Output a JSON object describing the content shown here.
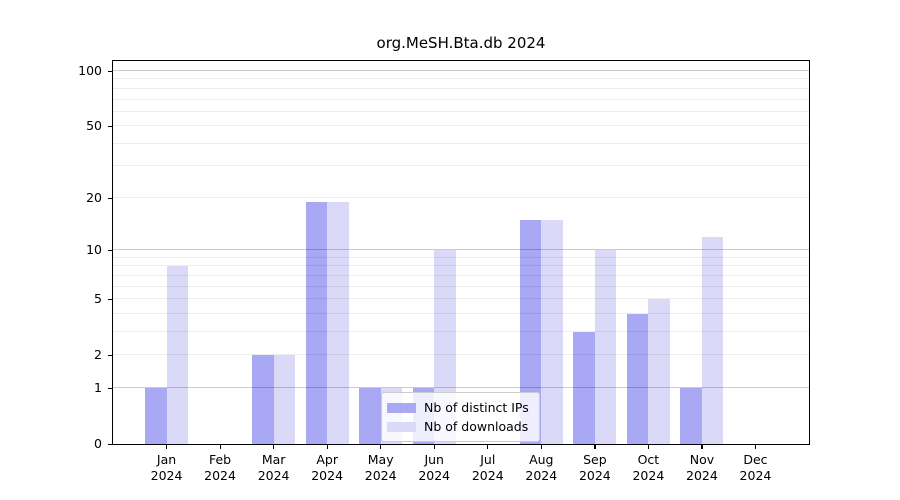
{
  "chart_data": {
    "type": "bar",
    "title": "org.MeSH.Bta.db 2024",
    "categories": [
      "Jan",
      "Feb",
      "Mar",
      "Apr",
      "May",
      "Jun",
      "Jul",
      "Aug",
      "Sep",
      "Oct",
      "Nov",
      "Dec"
    ],
    "category_year": "2024",
    "series": [
      {
        "name": "Nb of distinct IPs",
        "color": "#a8a8f4",
        "values": [
          1,
          0,
          2,
          19,
          1,
          1,
          0,
          15,
          3,
          4,
          1,
          0
        ]
      },
      {
        "name": "Nb of downloads",
        "color": "#dadaf8",
        "values": [
          8,
          0,
          2,
          19,
          1,
          10,
          0,
          15,
          10,
          5,
          12,
          0
        ]
      }
    ],
    "yscale": "log1p",
    "ylim": [
      0,
      100
    ],
    "ylabel": "",
    "xlabel": "",
    "y_ticks": [
      0,
      1,
      2,
      5,
      10,
      20,
      50,
      100
    ],
    "y_gridlines_major": [
      1,
      10,
      100
    ],
    "y_gridlines_minor": [
      2,
      3,
      4,
      5,
      6,
      7,
      8,
      9,
      20,
      30,
      40,
      50,
      60,
      70,
      80,
      90
    ],
    "grid": true,
    "legend_position": "inside-bottom-center"
  },
  "style": {
    "background": "#ffffff",
    "axis_color": "#000000",
    "bar_color_distinct_ips": "#a8a8f4",
    "bar_color_downloads": "#dadaf8",
    "legend_border_color": "#cccccc"
  }
}
